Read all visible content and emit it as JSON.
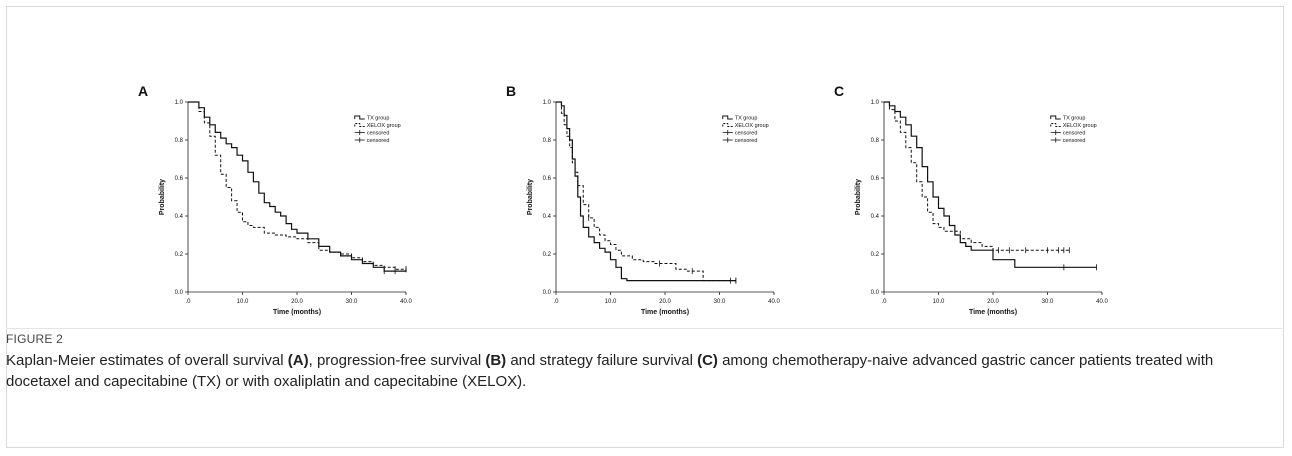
{
  "figure": {
    "label": "FIGURE 2",
    "caption_segments": [
      {
        "text": "Kaplan-Meier estimates of overall survival ",
        "bold": false
      },
      {
        "text": "(A)",
        "bold": true
      },
      {
        "text": ", progression-free survival ",
        "bold": false
      },
      {
        "text": "(B)",
        "bold": true
      },
      {
        "text": " and strategy failure survival ",
        "bold": false
      },
      {
        "text": "(C)",
        "bold": true
      },
      {
        "text": " among chemotherapy-naive advanced gastric cancer patients treated with docetaxel and capecitabine (TX) or with oxaliplatin and capecitabine (XELOX).",
        "bold": false
      }
    ]
  },
  "chart_data": [
    {
      "panel": "A",
      "type": "line",
      "xlabel": "Time (months)",
      "ylabel": "Probability",
      "xlim": [
        0,
        40
      ],
      "ylim": [
        0,
        1
      ],
      "xticks": [
        ".0",
        "10.0",
        "20.0",
        "30.0",
        "40.0"
      ],
      "yticks": [
        "0.0",
        "0.2",
        "0.4",
        "0.6",
        "0.8",
        "1.0"
      ],
      "legend": [
        "TX group",
        "XELOX group",
        "censored",
        "censored"
      ],
      "legend_position": "upper-right",
      "series": [
        {
          "name": "TX group",
          "style": "solid",
          "x": [
            0,
            2,
            3,
            4,
            5,
            6,
            7,
            8,
            9,
            10,
            11,
            12,
            13,
            14,
            15,
            16,
            17,
            18,
            19,
            20,
            22,
            24,
            26,
            28,
            30,
            32,
            34,
            36,
            38,
            40
          ],
          "y": [
            1.0,
            0.97,
            0.92,
            0.88,
            0.84,
            0.81,
            0.78,
            0.76,
            0.72,
            0.69,
            0.63,
            0.58,
            0.52,
            0.47,
            0.45,
            0.42,
            0.4,
            0.36,
            0.33,
            0.31,
            0.28,
            0.24,
            0.21,
            0.19,
            0.17,
            0.15,
            0.13,
            0.11,
            0.11,
            0.12
          ],
          "censored_x": [
            36,
            38,
            40
          ]
        },
        {
          "name": "XELOX group",
          "style": "dashed",
          "x": [
            0,
            2,
            3,
            4,
            5,
            6,
            7,
            8,
            9,
            10,
            11,
            12,
            14,
            16,
            18,
            20,
            22,
            24,
            26,
            28,
            30,
            32,
            34,
            36,
            38,
            40
          ],
          "y": [
            1.0,
            0.95,
            0.89,
            0.82,
            0.72,
            0.62,
            0.55,
            0.48,
            0.42,
            0.37,
            0.35,
            0.34,
            0.31,
            0.3,
            0.29,
            0.28,
            0.26,
            0.22,
            0.21,
            0.2,
            0.18,
            0.16,
            0.14,
            0.13,
            0.12,
            0.12
          ],
          "censored_x": [
            38,
            40
          ]
        }
      ]
    },
    {
      "panel": "B",
      "type": "line",
      "xlabel": "Time (months)",
      "ylabel": "Probability",
      "xlim": [
        0,
        40
      ],
      "ylim": [
        0,
        1
      ],
      "xticks": [
        ".0",
        "10.0",
        "20.0",
        "30.0",
        "40.0"
      ],
      "yticks": [
        "0.0",
        "0.2",
        "0.4",
        "0.6",
        "0.8",
        "1.0"
      ],
      "legend": [
        "TX group",
        "XELOX group",
        "censored",
        "censored"
      ],
      "legend_position": "upper-right",
      "series": [
        {
          "name": "TX group",
          "style": "solid",
          "x": [
            0,
            1,
            1.5,
            2,
            2.5,
            3,
            3.5,
            4,
            4.5,
            5,
            6,
            7,
            8,
            9,
            10,
            11,
            12,
            13,
            20,
            30,
            33
          ],
          "y": [
            1.0,
            0.98,
            0.93,
            0.86,
            0.8,
            0.7,
            0.61,
            0.5,
            0.4,
            0.34,
            0.29,
            0.26,
            0.23,
            0.21,
            0.17,
            0.13,
            0.07,
            0.06,
            0.06,
            0.06,
            0.06
          ],
          "censored_x": [
            32,
            33
          ]
        },
        {
          "name": "XELOX group",
          "style": "dashed",
          "x": [
            0,
            1,
            1.5,
            2,
            2.5,
            3,
            3.5,
            4,
            5,
            6,
            7,
            8,
            9,
            10,
            11,
            12,
            14,
            16,
            18,
            20,
            22,
            24,
            26,
            27,
            28,
            32,
            33
          ],
          "y": [
            1.0,
            0.94,
            0.88,
            0.82,
            0.76,
            0.68,
            0.63,
            0.56,
            0.46,
            0.39,
            0.34,
            0.3,
            0.27,
            0.25,
            0.22,
            0.19,
            0.17,
            0.16,
            0.15,
            0.15,
            0.12,
            0.11,
            0.11,
            0.06,
            0.06,
            0.06,
            0.06
          ],
          "censored_x": [
            4,
            6,
            19,
            25,
            33
          ]
        }
      ]
    },
    {
      "panel": "C",
      "type": "line",
      "xlabel": "Time (months)",
      "ylabel": "Probability",
      "xlim": [
        0,
        40
      ],
      "ylim": [
        0,
        1
      ],
      "xticks": [
        ".0",
        "10.0",
        "20.0",
        "30.0",
        "40.0"
      ],
      "yticks": [
        "0.0",
        "0.2",
        "0.4",
        "0.6",
        "0.8",
        "1.0"
      ],
      "legend": [
        "TX group",
        "XELOX group",
        "censored",
        "censored"
      ],
      "legend_position": "upper-right",
      "series": [
        {
          "name": "TX group",
          "style": "solid",
          "x": [
            0,
            1,
            2,
            3,
            4,
            5,
            6,
            7,
            8,
            9,
            10,
            11,
            12,
            13,
            14,
            15,
            16,
            18,
            20,
            22,
            24,
            26,
            30,
            35,
            39
          ],
          "y": [
            1.0,
            0.98,
            0.95,
            0.92,
            0.88,
            0.82,
            0.76,
            0.66,
            0.58,
            0.5,
            0.44,
            0.4,
            0.35,
            0.3,
            0.26,
            0.24,
            0.22,
            0.22,
            0.17,
            0.17,
            0.13,
            0.13,
            0.13,
            0.13,
            0.13
          ],
          "censored_x": [
            33,
            39
          ]
        },
        {
          "name": "XELOX group",
          "style": "dashed",
          "x": [
            0,
            1,
            2,
            3,
            4,
            5,
            6,
            7,
            8,
            9,
            10,
            11,
            12,
            14,
            16,
            18,
            20,
            22,
            26,
            30,
            34
          ],
          "y": [
            1.0,
            0.96,
            0.9,
            0.84,
            0.76,
            0.68,
            0.58,
            0.5,
            0.42,
            0.36,
            0.34,
            0.32,
            0.32,
            0.28,
            0.26,
            0.24,
            0.22,
            0.22,
            0.22,
            0.22,
            0.22
          ],
          "censored_x": [
            21,
            23,
            26,
            30,
            32,
            33,
            34
          ]
        }
      ]
    }
  ]
}
